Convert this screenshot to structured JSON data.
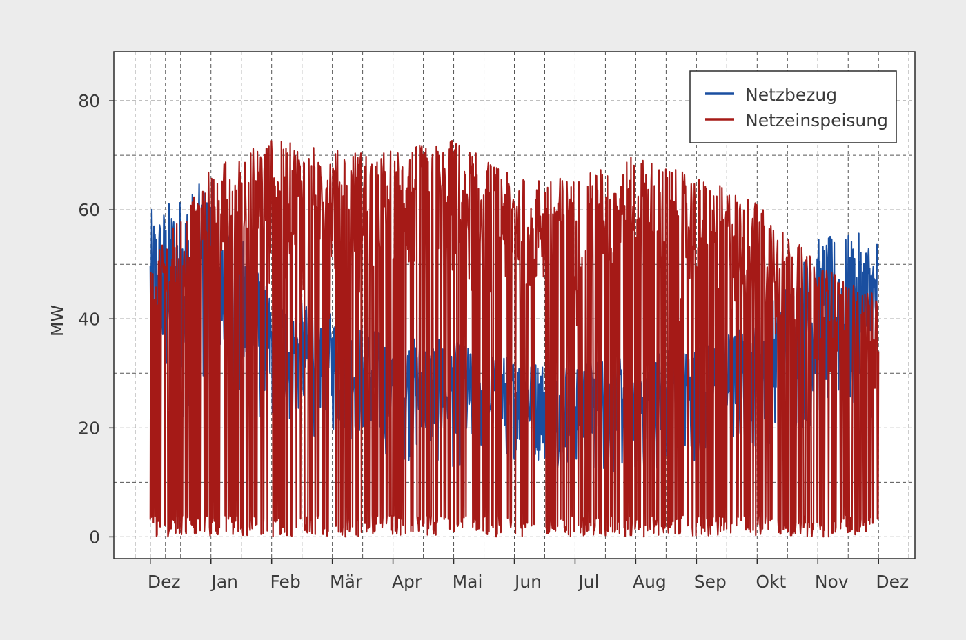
{
  "chart_data": {
    "type": "area",
    "title": "",
    "xlabel": "",
    "ylabel": "MW",
    "ylim": [
      -4,
      89
    ],
    "y_ticks": [
      0,
      20,
      40,
      60,
      80
    ],
    "x_ticks": [
      "Dez",
      "Jan",
      "Feb",
      "Mär",
      "Apr",
      "Mai",
      "Jun",
      "Jul",
      "Aug",
      "Sep",
      "Okt",
      "Nov",
      "Dez"
    ],
    "x_tick_months": [
      -1,
      0,
      1,
      2,
      3,
      4,
      5,
      6,
      7,
      8,
      9,
      10,
      11
    ],
    "xlim_months": [
      -1.6,
      11.6
    ],
    "grid": true,
    "legend_position": "top-right",
    "series": [
      {
        "name": "Netzbezug",
        "color": "#1a4fa0",
        "monthly_profile": [
          {
            "month": -1,
            "min": 20,
            "max": 60
          },
          {
            "month": 0,
            "min": 22,
            "max": 66
          },
          {
            "month": 1,
            "min": 18,
            "max": 45
          },
          {
            "month": 2,
            "min": 18,
            "max": 41
          },
          {
            "month": 3,
            "min": 14,
            "max": 37
          },
          {
            "month": 4,
            "min": 12,
            "max": 36
          },
          {
            "month": 5,
            "min": 14,
            "max": 33
          },
          {
            "month": 6,
            "min": 12,
            "max": 32
          },
          {
            "month": 7,
            "min": 10,
            "max": 35
          },
          {
            "month": 8,
            "min": 12,
            "max": 35
          },
          {
            "month": 9,
            "min": 16,
            "max": 40
          },
          {
            "month": 10,
            "min": 19,
            "max": 55
          },
          {
            "month": 11,
            "min": 20,
            "max": 56
          }
        ]
      },
      {
        "name": "Netzeinspeisung",
        "color": "#a51a17",
        "monthly_profile": [
          {
            "month": -1,
            "min": 0,
            "max": 50
          },
          {
            "month": 0,
            "min": 0,
            "max": 68
          },
          {
            "month": 1,
            "min": 0,
            "max": 73
          },
          {
            "month": 2,
            "min": 0,
            "max": 71
          },
          {
            "month": 3,
            "min": 0,
            "max": 71
          },
          {
            "month": 4,
            "min": 0,
            "max": 73
          },
          {
            "month": 5,
            "min": 0,
            "max": 66
          },
          {
            "month": 6,
            "min": 0,
            "max": 66
          },
          {
            "month": 7,
            "min": 0,
            "max": 70
          },
          {
            "month": 8,
            "min": 0,
            "max": 66
          },
          {
            "month": 9,
            "min": 0,
            "max": 62
          },
          {
            "month": 10,
            "min": 0,
            "max": 50
          },
          {
            "month": 11,
            "min": 0,
            "max": 44
          }
        ]
      }
    ]
  }
}
